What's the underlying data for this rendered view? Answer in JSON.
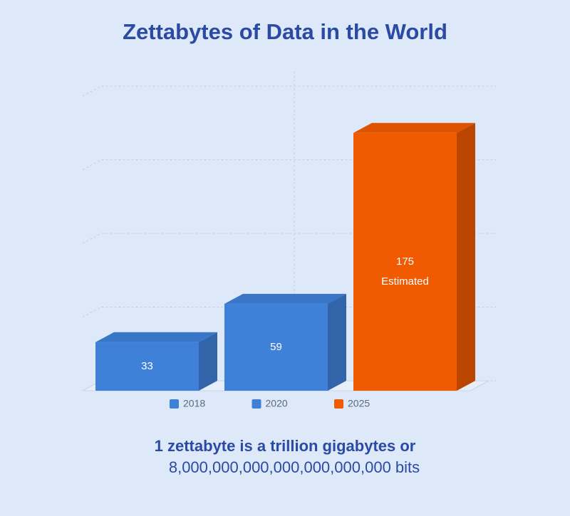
{
  "chart_data": {
    "type": "bar",
    "title": "Zettabytes of Data in the World",
    "categories": [
      "2018",
      "2020",
      "2025"
    ],
    "values": [
      33,
      59,
      175
    ],
    "colors": [
      "#3f80d8",
      "#3f80d8",
      "#f05a00"
    ],
    "annotations": [
      null,
      null,
      "Estimated"
    ],
    "ylim": [
      0,
      200
    ],
    "yticks": [
      0,
      50,
      100,
      150,
      200
    ],
    "grid": true,
    "footnote_lines": [
      "1 zettabyte is a trillion gigabytes or",
      "8,000,000,000,000,000,000,000 bits"
    ]
  }
}
